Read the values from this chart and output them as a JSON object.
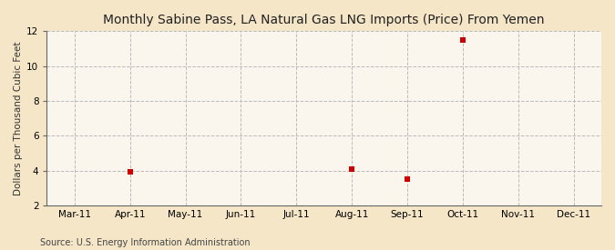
{
  "title": "Monthly Sabine Pass, LA Natural Gas LNG Imports (Price) From Yemen",
  "ylabel": "Dollars per Thousand Cubic Feet",
  "source": "Source: U.S. Energy Information Administration",
  "background_color": "#f5e6c8",
  "plot_bg_color": "#faf6ee",
  "x_labels": [
    "Mar-11",
    "Apr-11",
    "May-11",
    "Jun-11",
    "Jul-11",
    "Aug-11",
    "Sep-11",
    "Oct-11",
    "Nov-11",
    "Dec-11"
  ],
  "x_positions": [
    0,
    1,
    2,
    3,
    4,
    5,
    6,
    7,
    8,
    9
  ],
  "data_x": [
    1,
    5,
    6,
    7
  ],
  "data_y": [
    3.9,
    4.1,
    3.5,
    11.5
  ],
  "ylim": [
    2,
    12
  ],
  "yticks": [
    2,
    4,
    6,
    8,
    10,
    12
  ],
  "marker_color": "#cc0000",
  "marker_size": 5,
  "grid_color": "#bbbbbb",
  "title_fontsize": 10,
  "label_fontsize": 7.5,
  "tick_fontsize": 7.5,
  "source_fontsize": 7
}
